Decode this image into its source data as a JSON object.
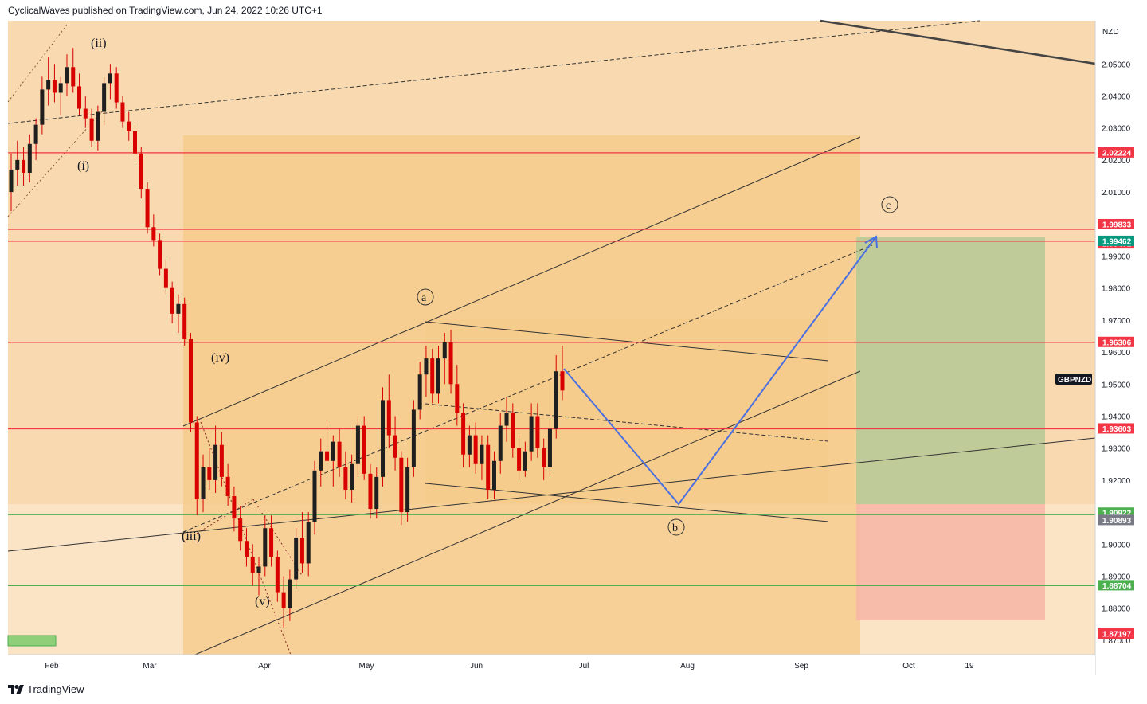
{
  "header": {
    "publisher_line": "CyclicalWaves published on TradingView.com, Jun 24, 2022 10:26 UTC+1"
  },
  "footer": {
    "brand": "TradingView",
    "logo_icon": "tradingview-logo-icon"
  },
  "colors": {
    "background": "#f8d9b0",
    "channel_fill": "#f6c987",
    "light_zone": "#fbe3c6",
    "candle": "#d90000",
    "resistance_line": "#f23645",
    "support_line": "#4caf50",
    "projection": "#4a6fe0",
    "target_zone": "#b5c996",
    "stop_zone": "#f7b7a6"
  },
  "chart_data": {
    "type": "line",
    "symbol": "GBPNZD",
    "currency": "NZD",
    "x_tick_labels": [
      "Feb",
      "Mar",
      "Apr",
      "May",
      "Jun",
      "Jul",
      "Aug",
      "Sep",
      "Oct",
      "19"
    ],
    "y_tick_labels": [
      "2.05000",
      "2.04000",
      "2.03000",
      "2.02000",
      "2.01000",
      "1.99000",
      "1.98000",
      "1.97000",
      "1.96000",
      "1.95000",
      "1.94000",
      "1.93000",
      "1.92000",
      "1.90000",
      "1.89000",
      "1.88000",
      "1.87000"
    ],
    "y_ticks": [
      2.05,
      2.04,
      2.03,
      2.02,
      2.01,
      1.99,
      1.98,
      1.97,
      1.96,
      1.95,
      1.94,
      1.93,
      1.92,
      1.9,
      1.89,
      1.88,
      1.87
    ],
    "ylim": [
      1.8655,
      2.0635
    ],
    "price_labels": [
      {
        "value": "2.02224",
        "price": 2.02224,
        "color": "#f23645"
      },
      {
        "value": "1.99833",
        "price": 1.99833,
        "color": "#f23645"
      },
      {
        "value": "1.99481",
        "price": 1.99481,
        "color": "#f23645"
      },
      {
        "value": "1.99462",
        "price": 1.99462,
        "color": "#089981"
      },
      {
        "value": "1.96306",
        "price": 1.96306,
        "color": "#f23645"
      },
      {
        "value": "1.93603",
        "price": 1.93603,
        "color": "#f23645"
      },
      {
        "value": "1.90922",
        "price": 1.90922,
        "color": "#4caf50"
      },
      {
        "value": "1.90893",
        "price": 1.90893,
        "color": "#787b86"
      },
      {
        "value": "1.88704",
        "price": 1.88704,
        "color": "#4caf50"
      },
      {
        "value": "1.87197",
        "price": 1.87197,
        "color": "#f23645"
      }
    ],
    "resistance_levels": [
      2.02224,
      1.99833,
      1.99462,
      1.96306,
      1.93603
    ],
    "support_levels": [
      1.90922,
      1.88704
    ],
    "symbol_badge": "GBPNZD",
    "wave_labels": [
      "(ii)",
      "(i)",
      "(iv)",
      "(iii)",
      "(v)",
      "a",
      "b",
      "c"
    ],
    "circled_wave_labels": [
      "a",
      "b",
      "c"
    ],
    "long_position": {
      "entry": 1.90922,
      "target": 1.99462,
      "stop": 1.87197
    },
    "candles": [
      [
        2.01,
        2.022,
        2.004,
        2.017
      ],
      [
        2.017,
        2.026,
        2.012,
        2.02
      ],
      [
        2.02,
        2.024,
        2.012,
        2.016
      ],
      [
        2.016,
        2.028,
        2.013,
        2.025
      ],
      [
        2.025,
        2.033,
        2.02,
        2.031
      ],
      [
        2.031,
        2.046,
        2.028,
        2.042
      ],
      [
        2.042,
        2.052,
        2.037,
        2.045
      ],
      [
        2.045,
        2.05,
        2.038,
        2.041
      ],
      [
        2.041,
        2.046,
        2.034,
        2.044
      ],
      [
        2.044,
        2.053,
        2.04,
        2.049
      ],
      [
        2.049,
        2.055,
        2.041,
        2.043
      ],
      [
        2.043,
        2.047,
        2.034,
        2.036
      ],
      [
        2.036,
        2.04,
        2.03,
        2.033
      ],
      [
        2.033,
        2.036,
        2.024,
        2.026
      ],
      [
        2.026,
        2.037,
        2.023,
        2.035
      ],
      [
        2.035,
        2.046,
        2.031,
        2.044
      ],
      [
        2.044,
        2.05,
        2.039,
        2.047
      ],
      [
        2.047,
        2.049,
        2.036,
        2.038
      ],
      [
        2.038,
        2.04,
        2.03,
        2.032
      ],
      [
        2.032,
        2.035,
        2.026,
        2.029
      ],
      [
        2.029,
        2.031,
        2.02,
        2.022
      ],
      [
        2.022,
        2.024,
        2.008,
        2.011
      ],
      [
        2.011,
        2.013,
        1.997,
        1.999
      ],
      [
        1.999,
        2.003,
        1.993,
        1.995
      ],
      [
        1.995,
        1.997,
        1.984,
        1.986
      ],
      [
        1.986,
        1.989,
        1.978,
        1.98
      ],
      [
        1.98,
        1.982,
        1.969,
        1.972
      ],
      [
        1.972,
        1.978,
        1.966,
        1.975
      ],
      [
        1.975,
        1.977,
        1.962,
        1.964
      ],
      [
        1.964,
        1.966,
        1.935,
        1.938
      ],
      [
        1.938,
        1.94,
        1.909,
        1.914
      ],
      [
        1.914,
        1.928,
        1.91,
        1.924
      ],
      [
        1.924,
        1.93,
        1.917,
        1.92
      ],
      [
        1.92,
        1.937,
        1.916,
        1.931
      ],
      [
        1.931,
        1.935,
        1.918,
        1.921
      ],
      [
        1.921,
        1.925,
        1.912,
        1.915
      ],
      [
        1.915,
        1.918,
        1.904,
        1.908
      ],
      [
        1.908,
        1.912,
        1.898,
        1.901
      ],
      [
        1.901,
        1.905,
        1.893,
        1.896
      ],
      [
        1.896,
        1.9,
        1.887,
        1.891
      ],
      [
        1.891,
        1.896,
        1.884,
        1.893
      ],
      [
        1.893,
        1.909,
        1.89,
        1.905
      ],
      [
        1.905,
        1.909,
        1.893,
        1.896
      ],
      [
        1.896,
        1.898,
        1.882,
        1.885
      ],
      [
        1.885,
        1.89,
        1.874,
        1.88
      ],
      [
        1.88,
        1.892,
        1.876,
        1.889
      ],
      [
        1.889,
        1.905,
        1.886,
        1.902
      ],
      [
        1.902,
        1.91,
        1.891,
        1.894
      ],
      [
        1.894,
        1.91,
        1.89,
        1.907
      ],
      [
        1.907,
        1.926,
        1.903,
        1.923
      ],
      [
        1.923,
        1.933,
        1.918,
        1.929
      ],
      [
        1.929,
        1.937,
        1.922,
        1.926
      ],
      [
        1.926,
        1.934,
        1.918,
        1.932
      ],
      [
        1.932,
        1.936,
        1.921,
        1.924
      ],
      [
        1.924,
        1.929,
        1.914,
        1.917
      ],
      [
        1.917,
        1.928,
        1.913,
        1.925
      ],
      [
        1.925,
        1.94,
        1.921,
        1.937
      ],
      [
        1.937,
        1.94,
        1.92,
        1.922
      ],
      [
        1.922,
        1.925,
        1.908,
        1.911
      ],
      [
        1.911,
        1.924,
        1.908,
        1.921
      ],
      [
        1.921,
        1.949,
        1.918,
        1.945
      ],
      [
        1.945,
        1.953,
        1.93,
        1.934
      ],
      [
        1.934,
        1.94,
        1.923,
        1.927
      ],
      [
        1.927,
        1.929,
        1.906,
        1.91
      ],
      [
        1.91,
        1.927,
        1.907,
        1.924
      ],
      [
        1.924,
        1.945,
        1.921,
        1.942
      ],
      [
        1.942,
        1.957,
        1.939,
        1.953
      ],
      [
        1.953,
        1.962,
        1.946,
        1.958
      ],
      [
        1.958,
        1.961,
        1.944,
        1.947
      ],
      [
        1.947,
        1.962,
        1.944,
        1.958
      ],
      [
        1.958,
        1.966,
        1.95,
        1.963
      ],
      [
        1.963,
        1.967,
        1.947,
        1.95
      ],
      [
        1.95,
        1.956,
        1.937,
        1.941
      ],
      [
        1.941,
        1.944,
        1.924,
        1.928
      ],
      [
        1.928,
        1.937,
        1.924,
        1.934
      ],
      [
        1.934,
        1.938,
        1.922,
        1.925
      ],
      [
        1.925,
        1.934,
        1.92,
        1.931
      ],
      [
        1.931,
        1.934,
        1.914,
        1.917
      ],
      [
        1.917,
        1.929,
        1.914,
        1.926
      ],
      [
        1.926,
        1.941,
        1.922,
        1.937
      ],
      [
        1.937,
        1.946,
        1.932,
        1.941
      ],
      [
        1.941,
        1.944,
        1.927,
        1.93
      ],
      [
        1.93,
        1.934,
        1.92,
        1.923
      ],
      [
        1.923,
        1.932,
        1.921,
        1.929
      ],
      [
        1.929,
        1.944,
        1.926,
        1.94
      ],
      [
        1.94,
        1.944,
        1.927,
        1.93
      ],
      [
        1.93,
        1.933,
        1.92,
        1.924
      ],
      [
        1.924,
        1.939,
        1.921,
        1.936
      ],
      [
        1.936,
        1.959,
        1.933,
        1.954
      ],
      [
        1.954,
        1.962,
        1.945,
        1.948
      ]
    ]
  }
}
